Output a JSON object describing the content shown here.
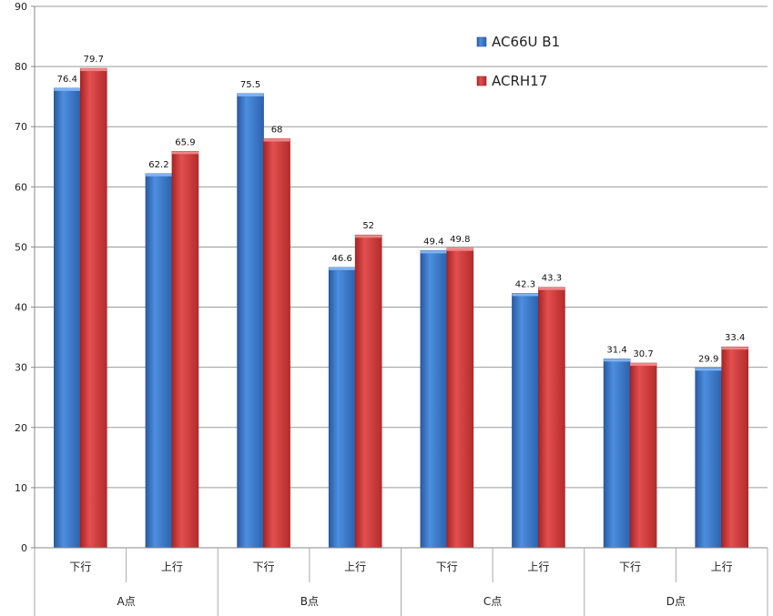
{
  "chart_data": {
    "type": "bar",
    "ylim": [
      0,
      90
    ],
    "yticks": [
      0,
      10,
      20,
      30,
      40,
      50,
      60,
      70,
      80,
      90
    ],
    "categories": [
      "下行",
      "上行",
      "下行",
      "上行",
      "下行",
      "上行",
      "下行",
      "上行"
    ],
    "groups": [
      "A点",
      "B点",
      "C点",
      "D点"
    ],
    "series": [
      {
        "name": "AC66U B1",
        "color": "#3a75c4",
        "values": [
          76.4,
          62.2,
          75.5,
          46.6,
          49.4,
          42.3,
          31.4,
          29.9
        ]
      },
      {
        "name": "ACRH17",
        "color": "#d33b3b",
        "values": [
          79.7,
          65.9,
          68,
          52,
          49.8,
          43.3,
          30.7,
          33.4
        ]
      }
    ],
    "grid": true,
    "legend_position": "top-right"
  }
}
